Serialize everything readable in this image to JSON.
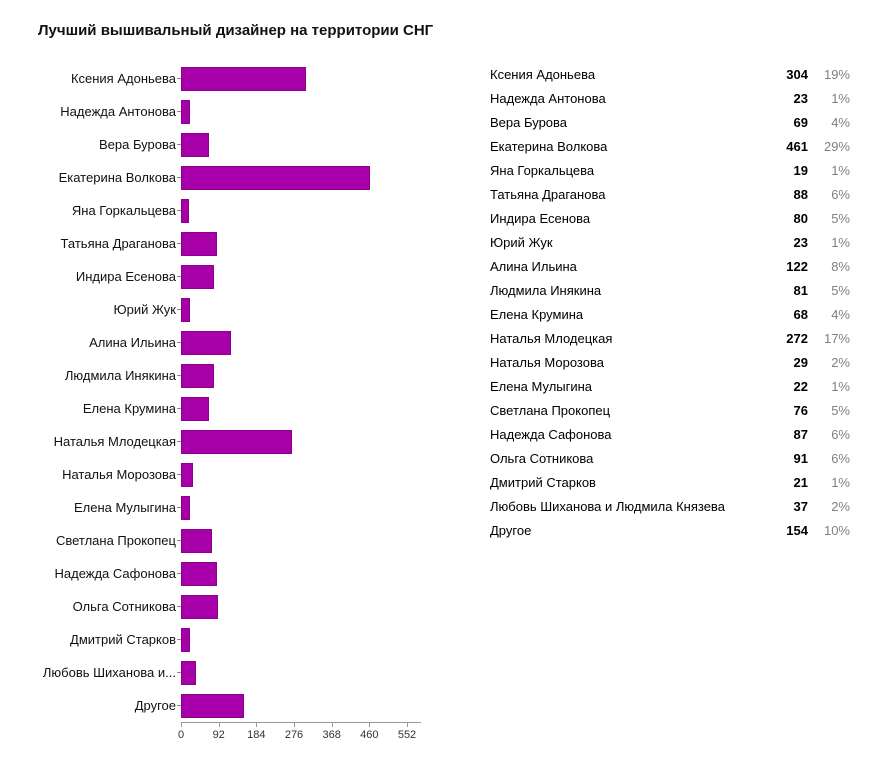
{
  "title": "Лучший вышивальный дизайнер на территории СНГ",
  "chart_data": {
    "type": "bar",
    "orientation": "horizontal",
    "title": "Лучший вышивальный дизайнер на территории СНГ",
    "xlabel": "",
    "ylabel": "",
    "xlim": [
      0,
      552
    ],
    "x_ticks": [
      0,
      92,
      184,
      276,
      368,
      460,
      552
    ],
    "bar_color": "#a800a8",
    "grid": false,
    "legend_position": "right",
    "items": [
      {
        "label": "Ксения Адоньева",
        "value": 304,
        "percent": "19%"
      },
      {
        "label": "Надежда Антонова",
        "value": 23,
        "percent": "1%"
      },
      {
        "label": "Вера Бурова",
        "value": 69,
        "percent": "4%"
      },
      {
        "label": "Екатерина Волкова",
        "value": 461,
        "percent": "29%"
      },
      {
        "label": "Яна Горкальцева",
        "value": 19,
        "percent": "1%"
      },
      {
        "label": "Татьяна Драганова",
        "value": 88,
        "percent": "6%"
      },
      {
        "label": "Индира Есенова",
        "value": 80,
        "percent": "5%"
      },
      {
        "label": "Юрий Жук",
        "value": 23,
        "percent": "1%"
      },
      {
        "label": "Алина Ильина",
        "value": 122,
        "percent": "8%"
      },
      {
        "label": "Людмила Инякина",
        "value": 81,
        "percent": "5%"
      },
      {
        "label": "Елена Крумина",
        "value": 68,
        "percent": "4%"
      },
      {
        "label": "Наталья Млодецкая",
        "value": 272,
        "percent": "17%"
      },
      {
        "label": "Наталья Морозова",
        "value": 29,
        "percent": "2%"
      },
      {
        "label": "Елена Мулыгина",
        "value": 22,
        "percent": "1%"
      },
      {
        "label": "Светлана Прокопец",
        "value": 76,
        "percent": "5%"
      },
      {
        "label": "Надежда Сафонова",
        "value": 87,
        "percent": "6%"
      },
      {
        "label": "Ольга Сотникова",
        "value": 91,
        "percent": "6%"
      },
      {
        "label": "Дмитрий Старков",
        "value": 21,
        "percent": "1%"
      },
      {
        "label": "Любовь Шиханова и Людмила Князева",
        "chart_label": "Любовь Шиханова и...",
        "value": 37,
        "percent": "2%"
      },
      {
        "label": "Другое",
        "value": 154,
        "percent": "10%"
      }
    ]
  }
}
